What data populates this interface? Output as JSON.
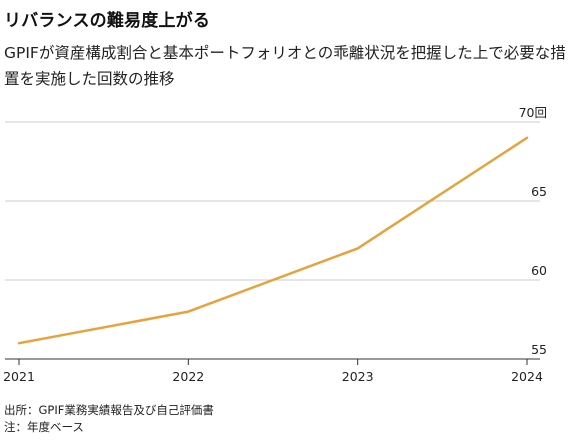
{
  "header": {
    "title": "リバランスの難易度上がる",
    "subtitle": "GPIFが資産構成割合と基本ポートフォリオとの乖離状況を把握した上で必要な措置を実施した回数の推移"
  },
  "footer": {
    "source": "出所：GPIF業務実績報告及び自己評価書",
    "note": "注：年度ベース"
  },
  "chart_data": {
    "type": "line",
    "title": "リバランスの難易度上がる",
    "x": [
      "2021",
      "2022",
      "2023",
      "2024"
    ],
    "series": [
      {
        "values": [
          56,
          58,
          62,
          69
        ],
        "color": "#e8a23c"
      }
    ],
    "ylim": [
      55,
      70
    ],
    "yticks": [
      55,
      60,
      65,
      70
    ],
    "ytick_labels": [
      "55",
      "60",
      "65",
      "70回"
    ],
    "grid": true,
    "gridline_color": "#cccccc"
  }
}
